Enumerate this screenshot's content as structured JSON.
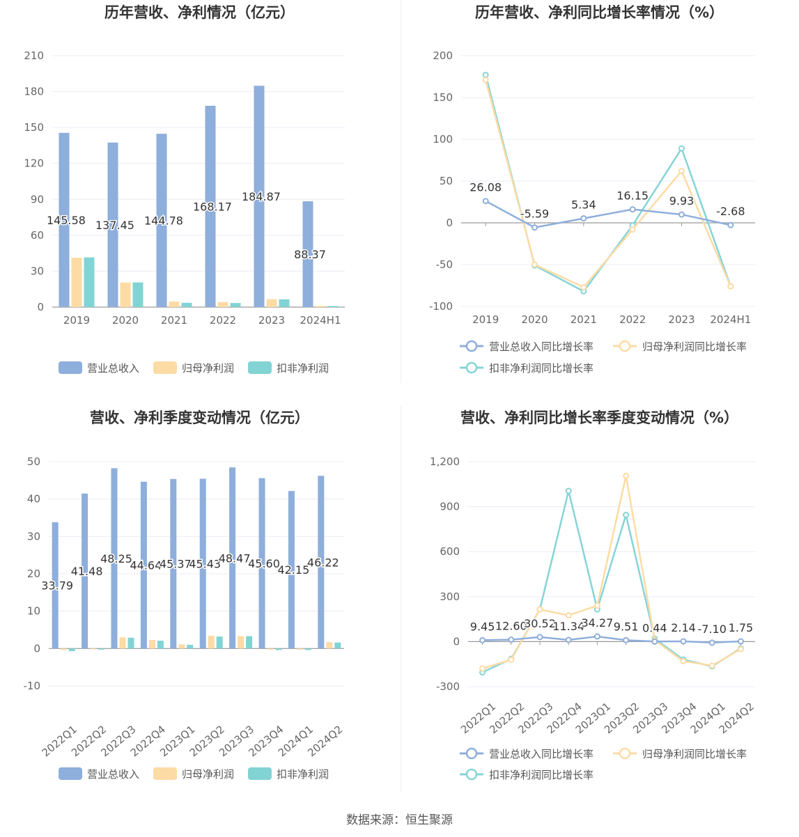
{
  "colors": {
    "revenue": "#8eaedb",
    "net_profit": "#fddba5",
    "deducted_profit": "#82d3d4",
    "revenue_line": "#8eaedb",
    "net_line": "#fddba5",
    "deducted_line": "#86d4d6",
    "grid": "#e8ecf4",
    "axis_label": "#666666"
  },
  "source_text": "数据来源：恒生聚源",
  "chart_data": [
    {
      "type": "bar",
      "title": "历年营收、净利情况（亿元）",
      "categories": [
        "2019",
        "2020",
        "2021",
        "2022",
        "2023",
        "2024H1"
      ],
      "yticks": [
        "0",
        "30",
        "60",
        "90",
        "120",
        "150",
        "180",
        "210"
      ],
      "ylim": [
        0,
        210
      ],
      "series": [
        {
          "name": "营业总收入",
          "values": [
            145.58,
            137.45,
            144.78,
            168.17,
            184.87,
            88.37
          ],
          "labels": [
            "145.58",
            "137.45",
            "144.78",
            "168.17",
            "184.87",
            "88.37"
          ]
        },
        {
          "name": "归母净利润",
          "values": [
            41.2,
            20.5,
            4.6,
            4.2,
            6.6,
            1.0
          ]
        },
        {
          "name": "扣非净利润",
          "values": [
            41.5,
            20.6,
            3.6,
            3.4,
            6.5,
            0.9
          ]
        }
      ],
      "legend": "bottom"
    },
    {
      "type": "line",
      "title": "历年营收、净利同比增长率情况（%）",
      "categories": [
        "2019",
        "2020",
        "2021",
        "2022",
        "2023",
        "2024H1"
      ],
      "yticks": [
        "-100",
        "-50",
        "0",
        "50",
        "100",
        "150",
        "200"
      ],
      "ylim": [
        -100,
        200
      ],
      "series": [
        {
          "name": "营业总收入同比增长率",
          "values": [
            26.08,
            -5.59,
            5.34,
            16.15,
            9.93,
            -2.68
          ],
          "labels": [
            "26.08",
            "-5.59",
            "5.34",
            "16.15",
            "9.93",
            "-2.68"
          ]
        },
        {
          "name": "归母净利润同比增长率",
          "values": [
            171,
            -50,
            -77,
            -8,
            62,
            -76
          ]
        },
        {
          "name": "扣非净利润同比增长率",
          "values": [
            177,
            -51,
            -82,
            -3,
            89,
            -76
          ]
        }
      ],
      "legend": "bottom"
    },
    {
      "type": "bar",
      "title": "营收、净利季度变动情况（亿元）",
      "categories": [
        "2022Q1",
        "2022Q2",
        "2022Q3",
        "2022Q4",
        "2023Q1",
        "2023Q2",
        "2023Q3",
        "2023Q4",
        "2024Q1",
        "2024Q2"
      ],
      "yticks": [
        "-10",
        "0",
        "10",
        "20",
        "30",
        "40",
        "50"
      ],
      "ylim": [
        -10,
        50
      ],
      "series": [
        {
          "name": "营业总收入",
          "values": [
            33.79,
            41.48,
            48.25,
            44.64,
            45.37,
            45.43,
            48.47,
            45.6,
            42.15,
            46.22
          ],
          "labels": [
            "33.79",
            "41.48",
            "48.25",
            "44.64",
            "45.37",
            "45.43",
            "48.47",
            "45.60",
            "42.15",
            "46.22"
          ]
        },
        {
          "name": "归母净利润",
          "values": [
            -0.4,
            -0.2,
            3.0,
            2.3,
            1.1,
            3.4,
            3.3,
            -0.3,
            -0.3,
            1.7
          ]
        },
        {
          "name": "扣非净利润",
          "values": [
            -0.7,
            -0.3,
            2.9,
            2.1,
            1.0,
            3.2,
            3.3,
            -0.4,
            -0.4,
            1.6
          ]
        }
      ],
      "legend": "bottom"
    },
    {
      "type": "line",
      "title": "营收、净利同比增长率季度变动情况（%）",
      "categories": [
        "2022Q1",
        "2022Q2",
        "2022Q3",
        "2022Q4",
        "2023Q1",
        "2023Q2",
        "2023Q3",
        "2023Q4",
        "2024Q1",
        "2024Q2"
      ],
      "yticks": [
        "-300",
        "0",
        "300",
        "600",
        "900",
        "1,200"
      ],
      "ylim": [
        -300,
        1200
      ],
      "series": [
        {
          "name": "营业总收入同比增长率",
          "values": [
            9.45,
            12.6,
            30.52,
            11.34,
            34.27,
            9.51,
            0.44,
            2.14,
            -7.1,
            1.75
          ],
          "labels": [
            "9.45",
            "12.60",
            "30.52",
            "11.34",
            "34.27",
            "9.51",
            "0.44",
            "2.14",
            "-7.10",
            "1.75"
          ]
        },
        {
          "name": "归母净利润同比增长率",
          "values": [
            -180,
            -120,
            215,
            175,
            240,
            1105,
            10,
            -130,
            -160,
            -50
          ]
        },
        {
          "name": "扣非净利润同比增长率",
          "values": [
            -205,
            -115,
            215,
            1005,
            215,
            845,
            20,
            -120,
            -165,
            -45
          ]
        }
      ],
      "legend": "bottom"
    }
  ]
}
